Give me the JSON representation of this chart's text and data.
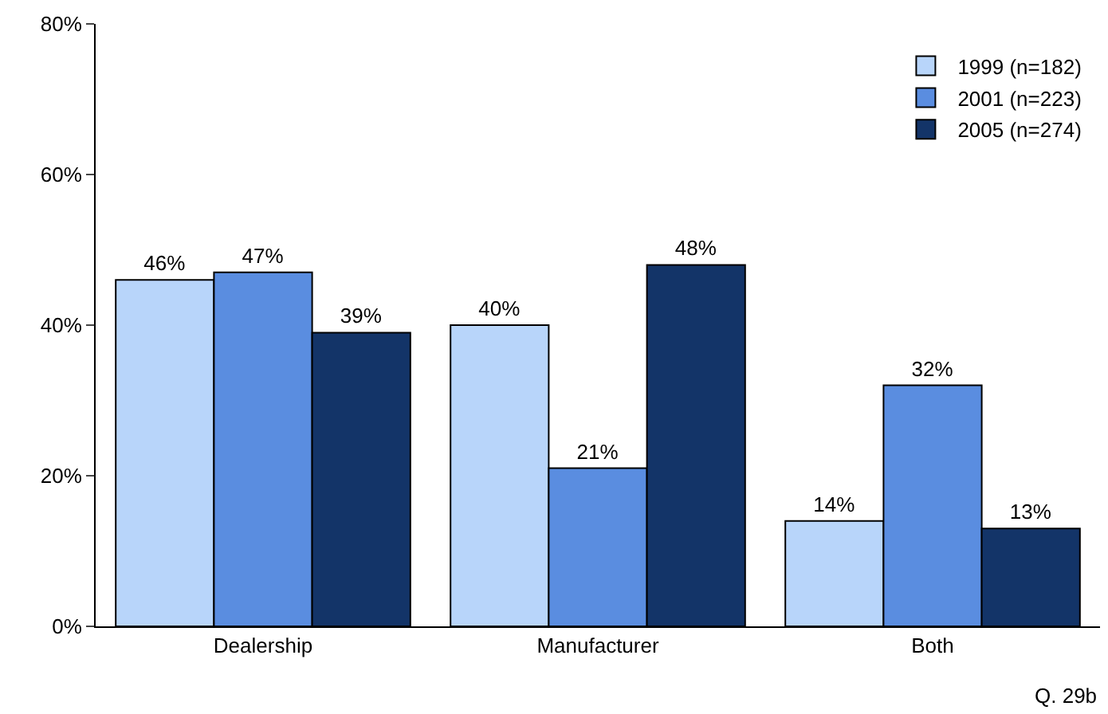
{
  "chart_data": {
    "type": "bar",
    "categories": [
      "Dealership",
      "Manufacturer",
      "Both"
    ],
    "series": [
      {
        "name": "1999 (n=182)",
        "color": "#b8d5fa",
        "values": [
          46,
          40,
          14
        ],
        "value_labels": [
          "46%",
          "40%",
          "14%"
        ]
      },
      {
        "name": "2001 (n=223)",
        "color": "#5a8de0",
        "values": [
          47,
          21,
          32
        ],
        "value_labels": [
          "47%",
          "21%",
          "32%"
        ]
      },
      {
        "name": "2005 (n=274)",
        "color": "#133468",
        "values": [
          39,
          48,
          13
        ],
        "value_labels": [
          "39%",
          "48%",
          "13%"
        ]
      }
    ],
    "ylim": [
      0,
      80
    ],
    "yticks": [
      {
        "value": 0,
        "label": "0%"
      },
      {
        "value": 20,
        "label": "20%"
      },
      {
        "value": 40,
        "label": "40%"
      },
      {
        "value": 60,
        "label": "60%"
      },
      {
        "value": 80,
        "label": "80%"
      }
    ],
    "grid": false,
    "legend": "top right",
    "annotations": [
      "Q. 29b"
    ]
  }
}
